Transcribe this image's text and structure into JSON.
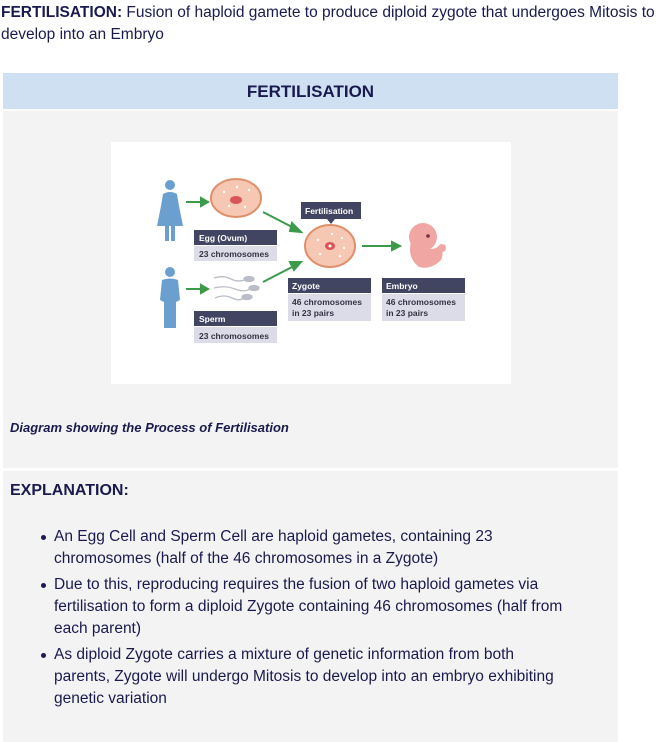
{
  "intro": {
    "term": "FERTILISATION:",
    "definition": " Fusion of haploid gamete to produce diploid zygote that undergoes Mitosis to develop into an Embryo"
  },
  "card": {
    "title": "FERTILISATION",
    "caption": "Diagram showing the Process of Fertilisation",
    "explanation_title": "EXPLANATION:",
    "bullets": [
      "An Egg Cell and Sperm Cell are haploid gametes, containing 23 chromosomes (half of the 46 chromosomes in a Zygote)",
      "Due to this, reproducing requires the fusion of two haploid gametes via fertilisation to form a diploid Zygote containing 46 chromosomes (half from each parent)",
      "As diploid Zygote carries a mixture of genetic information from both parents, Zygote will undergo Mitosis to develop into an embryo exhibiting genetic variation"
    ]
  },
  "diagram": {
    "egg_label": "Egg (Ovum)",
    "egg_count": "23 chromosomes",
    "sperm_label": "Sperm",
    "sperm_count": "23 chromosomes",
    "fertilisation_label": "Fertilisation",
    "zygote_label": "Zygote",
    "zygote_count_line1": "46 chromosomes",
    "zygote_count_line2": "in 23 pairs",
    "embryo_label": "Embryo",
    "embryo_count_line1": "46 chromosomes",
    "embryo_count_line2": "in 23 pairs",
    "colors": {
      "person": "#6a9fd0",
      "arrow": "#3d9a4a",
      "label_dark": "#414562",
      "label_light": "#dcdbe8",
      "cell_fill": "#f6c8b4",
      "cell_stroke": "#e08f6b",
      "nucleus": "#d9555a",
      "embryo": "#f0a6a3"
    }
  }
}
